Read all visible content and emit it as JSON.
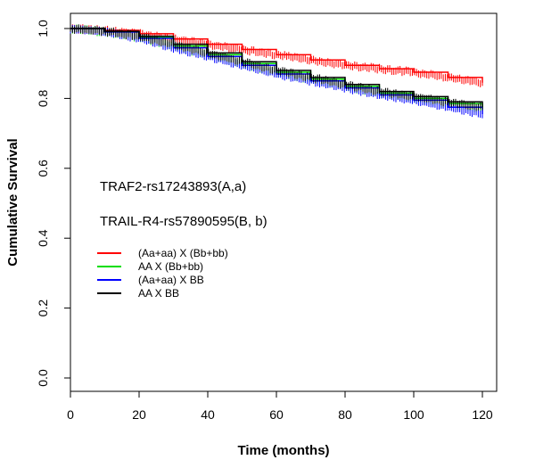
{
  "chart_data": {
    "type": "line",
    "xlabel": "Time (months)",
    "ylabel": "Cumulative Survival",
    "xlim": [
      0,
      120
    ],
    "ylim": [
      0,
      1
    ],
    "x_ticks": [
      "0",
      "20",
      "40",
      "60",
      "80",
      "100",
      "120"
    ],
    "y_ticks": [
      "0.0",
      "0.2",
      "0.4",
      "0.6",
      "0.8",
      "1.0"
    ],
    "annotations": [
      "TRAF2-rs17243893(A,a)",
      "TRAIL-R4-rs57890595(B, b)"
    ],
    "legend_position": "left-center",
    "series": [
      {
        "name": "(Aa+aa) X (Bb+bb)",
        "color": "#ff0000",
        "x": [
          0,
          10,
          20,
          30,
          40,
          50,
          60,
          70,
          80,
          90,
          100,
          110,
          120
        ],
        "y": [
          1.0,
          0.995,
          0.985,
          0.97,
          0.955,
          0.94,
          0.925,
          0.91,
          0.895,
          0.885,
          0.875,
          0.86,
          0.845
        ]
      },
      {
        "name": "AA X (Bb+bb)",
        "color": "#00dd00",
        "x": [
          0,
          10,
          20,
          30,
          40,
          50,
          60,
          70,
          80,
          90,
          100,
          110,
          120
        ],
        "y": [
          1.0,
          0.99,
          0.975,
          0.95,
          0.925,
          0.9,
          0.875,
          0.855,
          0.835,
          0.815,
          0.8,
          0.785,
          0.77
        ]
      },
      {
        "name": "(Aa+aa) X BB",
        "color": "#0000ff",
        "x": [
          0,
          10,
          20,
          30,
          40,
          50,
          60,
          70,
          80,
          90,
          100,
          110,
          120
        ],
        "y": [
          1.0,
          0.99,
          0.972,
          0.945,
          0.92,
          0.895,
          0.87,
          0.85,
          0.83,
          0.81,
          0.795,
          0.775,
          0.755
        ]
      },
      {
        "name": "AA X BB",
        "color": "#000000",
        "x": [
          0,
          10,
          20,
          30,
          40,
          50,
          60,
          70,
          80,
          90,
          100,
          110,
          120
        ],
        "y": [
          1.0,
          0.992,
          0.978,
          0.955,
          0.93,
          0.905,
          0.88,
          0.86,
          0.84,
          0.82,
          0.805,
          0.79,
          0.775
        ]
      }
    ]
  }
}
